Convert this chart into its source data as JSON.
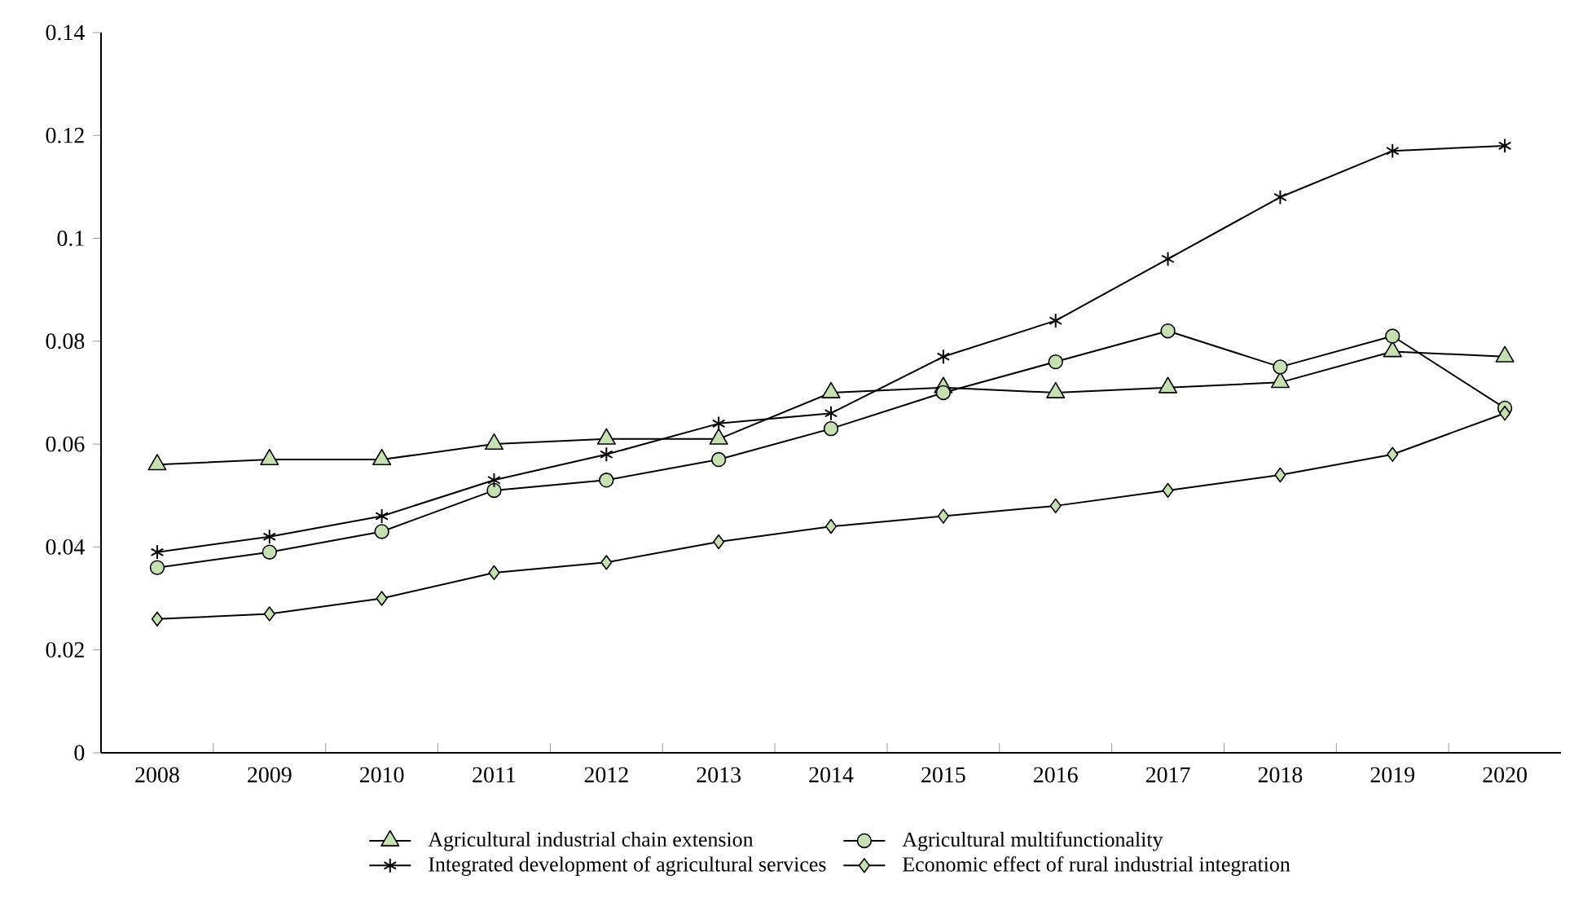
{
  "chart_data": {
    "type": "line",
    "categories": [
      "2008",
      "2009",
      "2010",
      "2011",
      "2012",
      "2013",
      "2014",
      "2015",
      "2016",
      "2017",
      "2018",
      "2019",
      "2020"
    ],
    "ylim": [
      0,
      0.14
    ],
    "yticks": [
      0,
      0.02,
      0.04,
      0.06,
      0.08,
      0.1,
      0.12,
      0.14
    ],
    "grid": false,
    "legend": "bottom",
    "line_style": "solid",
    "series": [
      {
        "name": "Agricultural industrial chain extension",
        "color": "#c6e0b4",
        "marker": "triangle",
        "values": [
          0.056,
          0.057,
          0.057,
          0.06,
          0.061,
          0.061,
          0.07,
          0.071,
          0.07,
          0.071,
          0.072,
          0.078,
          0.077
        ]
      },
      {
        "name": "Agricultural multifunctionality",
        "color": "#c6e0b4",
        "marker": "circle",
        "values": [
          0.036,
          0.039,
          0.043,
          0.051,
          0.053,
          0.057,
          0.063,
          0.07,
          0.076,
          0.082,
          0.075,
          0.081,
          0.067
        ]
      },
      {
        "name": "Integrated development of agricultural services",
        "color": "#000000",
        "marker": "cross",
        "values": [
          0.039,
          0.042,
          0.046,
          0.053,
          0.058,
          0.064,
          0.066,
          0.077,
          0.084,
          0.096,
          0.108,
          0.117,
          0.118
        ]
      },
      {
        "name": "Economic effect of rural industrial integration",
        "color": "#c6e0b4",
        "marker": "diamond",
        "values": [
          0.026,
          0.027,
          0.03,
          0.035,
          0.037,
          0.041,
          0.044,
          0.046,
          0.048,
          0.051,
          0.054,
          0.058,
          0.066
        ]
      }
    ]
  }
}
